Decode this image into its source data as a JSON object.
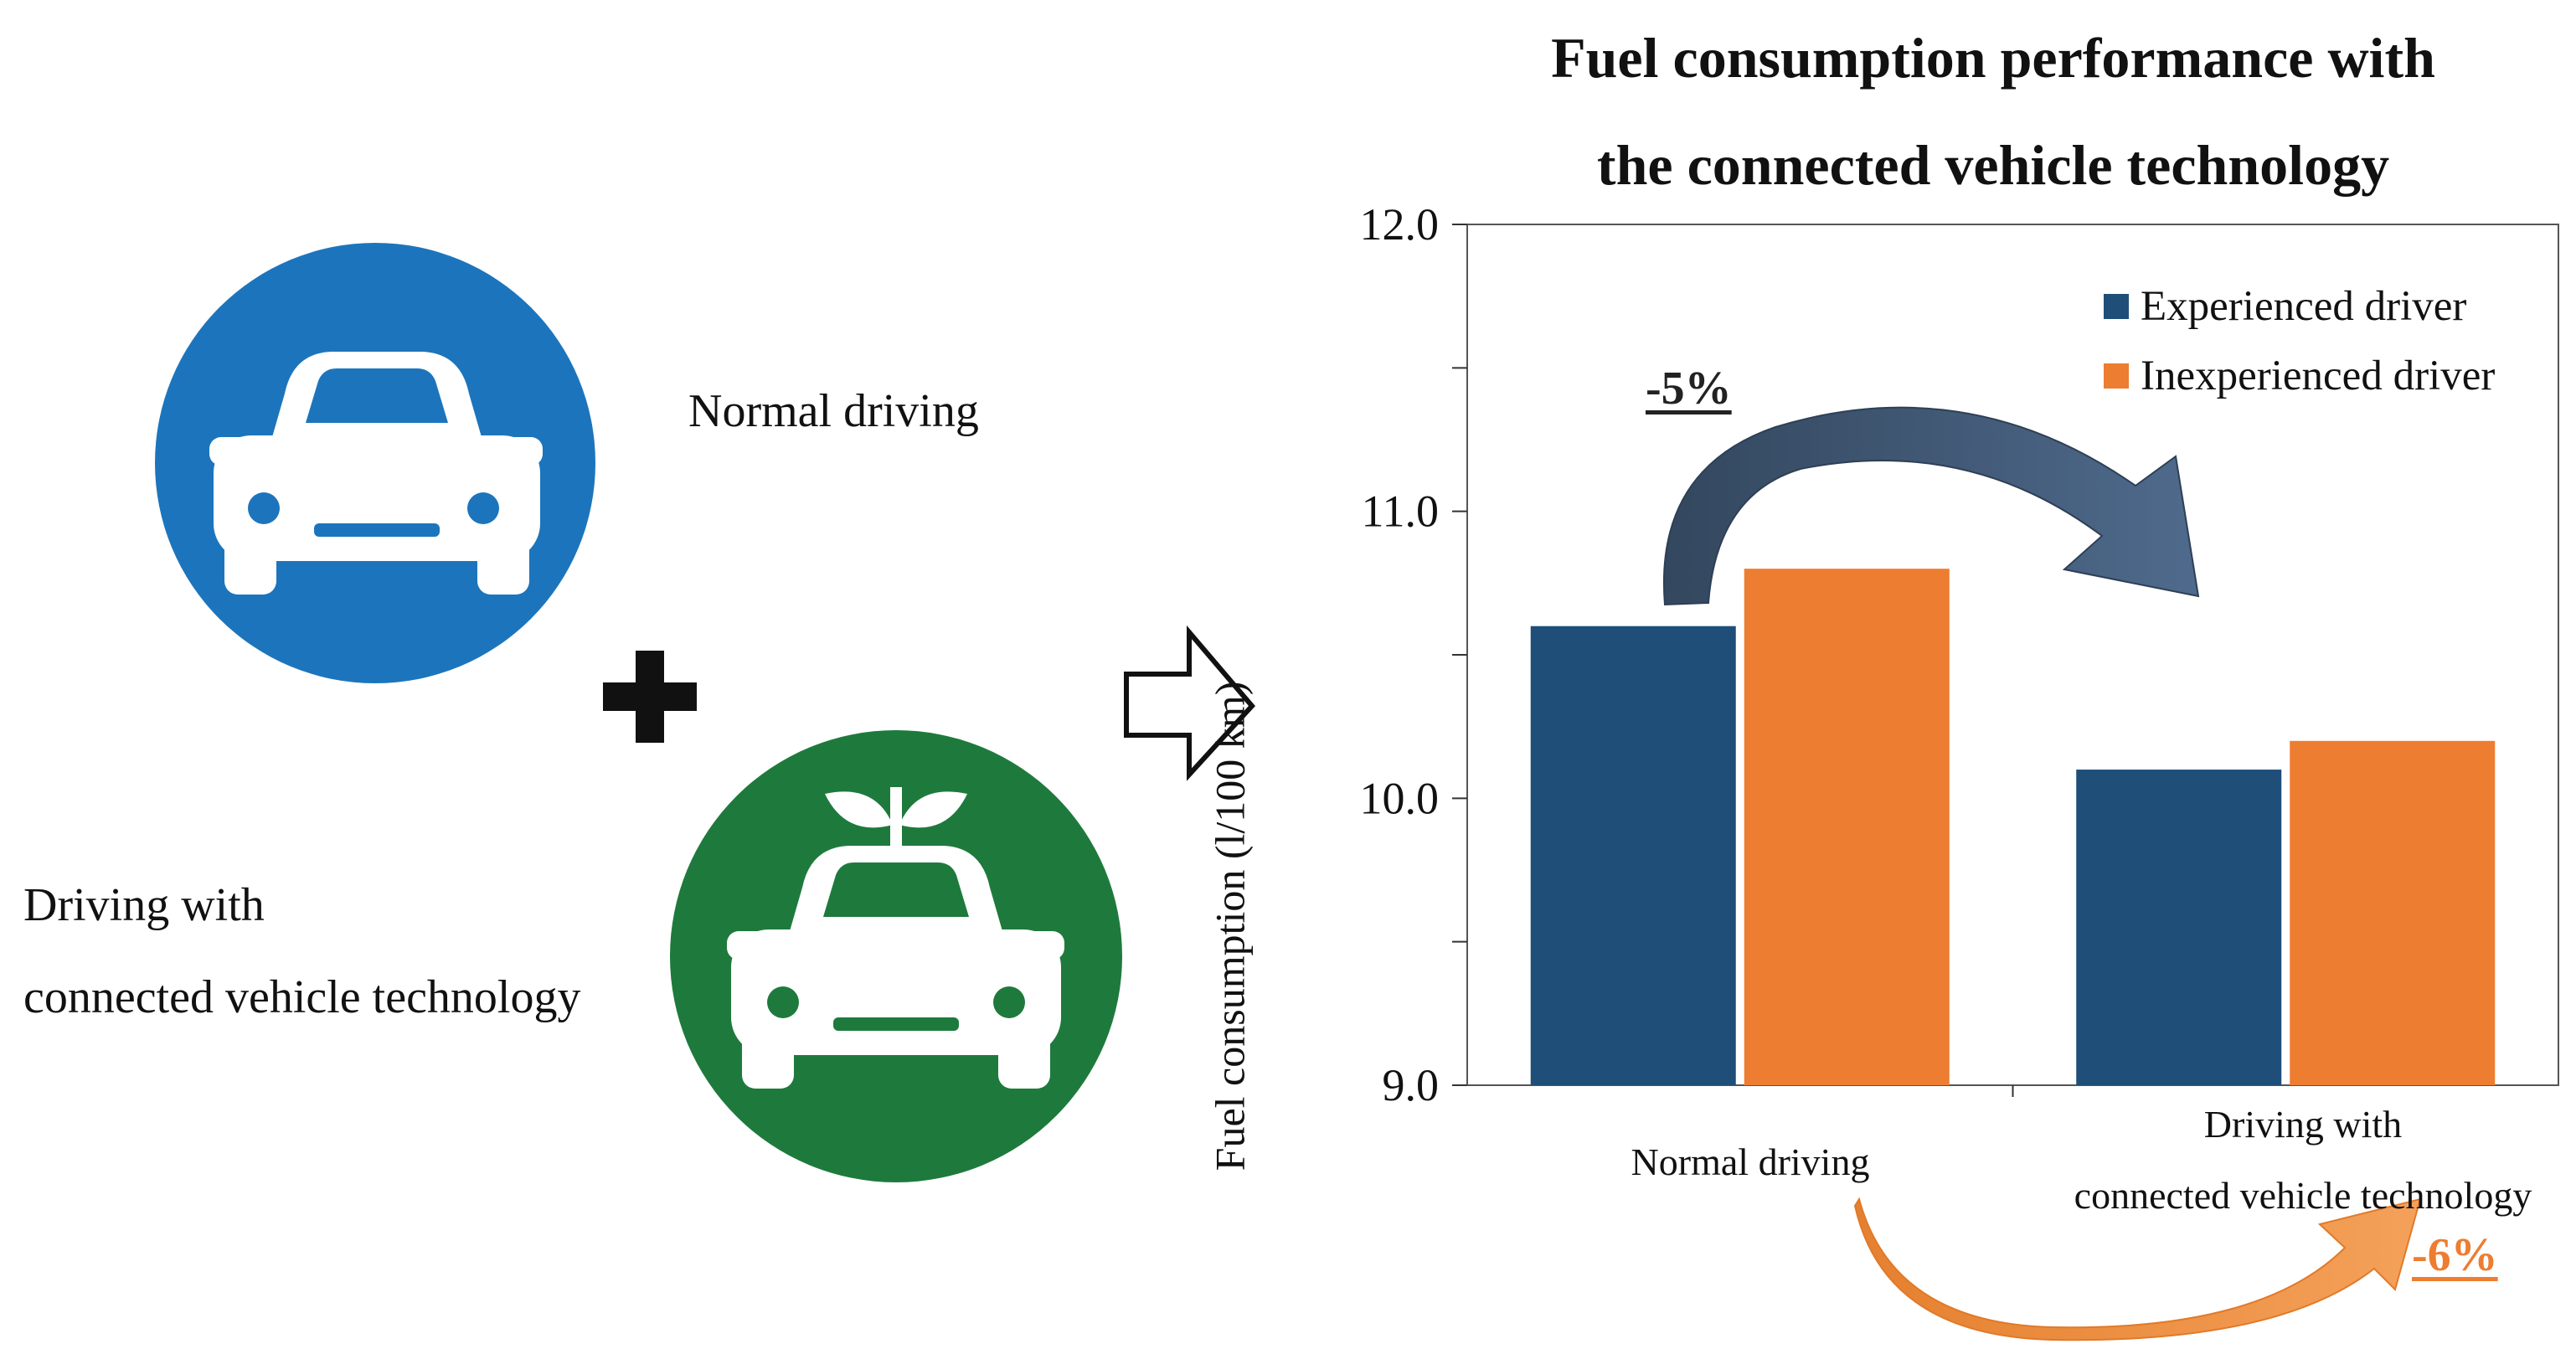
{
  "left": {
    "normal_caption": "Normal driving",
    "connected_caption_line1": "Driving with",
    "connected_caption_line2": "connected vehicle technology",
    "plus_symbol": "+",
    "icons": [
      "car-icon",
      "eco-car-icon",
      "plus-icon",
      "hollow-arrow-right-icon"
    ],
    "colors": {
      "blue_circle": "#1C75BC",
      "green_circle": "#1E7A3C"
    }
  },
  "chart_data": {
    "type": "bar",
    "title_line1": "Fuel consumption performance with",
    "title_line2": "the connected vehicle technology",
    "ylabel": "Fuel consumption (l/100 km)",
    "xlabel": "",
    "categories": [
      {
        "line1": "Normal driving",
        "line2": ""
      },
      {
        "line1": "Driving with",
        "line2": "connected vehicle technology"
      }
    ],
    "series": [
      {
        "name": "Experienced driver",
        "color": "#1F4E79",
        "values": [
          10.6,
          10.1
        ]
      },
      {
        "name": "Inexperienced driver",
        "color": "#ED7D31",
        "values": [
          10.8,
          10.2
        ]
      }
    ],
    "ylim": [
      9.0,
      12.0
    ],
    "yticks": [
      "12.0",
      "11.0",
      "10.0",
      "9.0"
    ],
    "ytick_values": [
      12.0,
      11.0,
      10.0,
      9.0
    ],
    "legend_position": "top-right",
    "grid": false,
    "annotations": [
      {
        "text": "-5%",
        "series": "Experienced driver",
        "color": "#222222"
      },
      {
        "text": "-6%",
        "series": "Inexperienced driver",
        "color": "#ED7D31"
      }
    ]
  }
}
